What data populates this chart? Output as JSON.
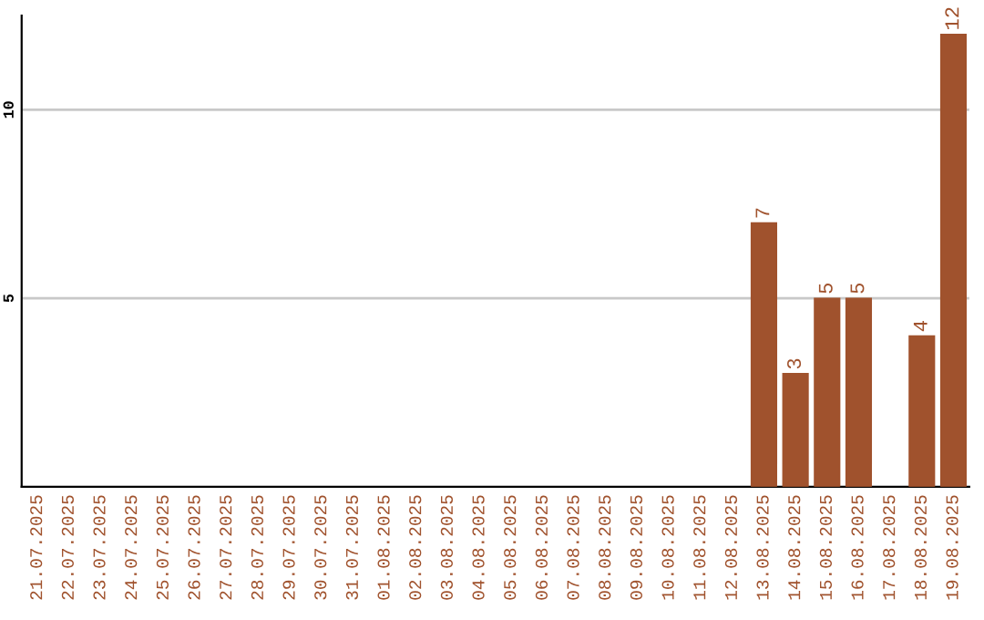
{
  "chart_data": {
    "type": "bar",
    "categories": [
      "21.07.2025",
      "22.07.2025",
      "23.07.2025",
      "24.07.2025",
      "25.07.2025",
      "26.07.2025",
      "27.07.2025",
      "28.07.2025",
      "29.07.2025",
      "30.07.2025",
      "31.07.2025",
      "01.08.2025",
      "02.08.2025",
      "03.08.2025",
      "04.08.2025",
      "05.08.2025",
      "06.08.2025",
      "07.08.2025",
      "08.08.2025",
      "09.08.2025",
      "10.08.2025",
      "11.08.2025",
      "12.08.2025",
      "13.08.2025",
      "14.08.2025",
      "15.08.2025",
      "16.08.2025",
      "17.08.2025",
      "18.08.2025",
      "19.08.2025"
    ],
    "values": [
      null,
      null,
      null,
      null,
      null,
      null,
      null,
      null,
      null,
      null,
      null,
      null,
      null,
      null,
      null,
      null,
      null,
      null,
      null,
      null,
      null,
      null,
      null,
      7,
      3,
      5,
      5,
      null,
      4,
      12
    ],
    "color": "#a0522d",
    "ylim": [
      0,
      12.5
    ],
    "yticks": [
      5,
      10
    ],
    "grid": "y",
    "data_labels": true
  }
}
